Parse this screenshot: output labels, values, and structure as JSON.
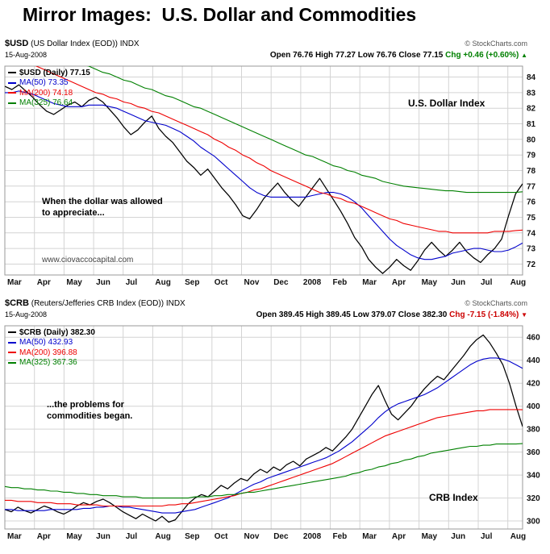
{
  "title": "Mirror Images:  U.S. Dollar and Commodities",
  "usd": {
    "symbol": "$USD",
    "name": "(US Dollar Index (EOD)) INDX",
    "date": "15-Aug-2008",
    "copyright": "© StockCharts.com",
    "ohlc": "Open 76.76 High 77.27 Low 76.76 Close 77.15",
    "chg": "Chg +0.46 (+0.60%)",
    "chg_arrow": "▲",
    "annotation_line1": "When the dollar was allowed",
    "annotation_line2": "to appreciate...",
    "watermark": "www.ciovaccocapital.com",
    "index_label": "U.S. Dollar Index"
  },
  "crb": {
    "symbol": "$CRB",
    "name": "(Reuters/Jefferies CRB Index (EOD)) INDX",
    "date": "15-Aug-2008",
    "copyright": "© StockCharts.com",
    "ohlc": "Open 389.45 High 389.45 Low 379.07 Close 382.30",
    "chg": "Chg -7.15 (-1.84%)",
    "chg_arrow": "▼",
    "annotation_line1": "...the problems for",
    "annotation_line2": "commodities began.",
    "index_label": "CRB Index"
  },
  "chart_data": [
    {
      "type": "line",
      "title": "$USD (US Dollar Index (EOD)) INDX",
      "x_categories": [
        "Mar",
        "Apr",
        "May",
        "Jun",
        "Jul",
        "Aug",
        "Sep",
        "Oct",
        "Nov",
        "Dec",
        "2008",
        "Feb",
        "Mar",
        "Apr",
        "May",
        "Jun",
        "Jul",
        "Aug"
      ],
      "x_span_months": 17.5,
      "y_ticks": [
        72,
        73,
        74,
        75,
        76,
        77,
        78,
        79,
        80,
        81,
        82,
        83,
        84
      ],
      "ylim": [
        71.3,
        84.7
      ],
      "grid": true,
      "legend_position": "top-left",
      "series": [
        {
          "name": "$USD (Daily)",
          "label": "$USD (Daily) 77.15",
          "color": "#000000",
          "bold": true,
          "width": 1.25,
          "values": [
            83.4,
            83.2,
            83.5,
            83.1,
            82.7,
            82.2,
            81.8,
            81.6,
            81.9,
            82.2,
            82.4,
            82.1,
            82.5,
            82.7,
            82.4,
            81.9,
            81.4,
            80.8,
            80.3,
            80.6,
            81.1,
            81.5,
            80.7,
            80.2,
            79.8,
            79.2,
            78.6,
            78.2,
            77.7,
            78.1,
            77.5,
            76.9,
            76.4,
            75.8,
            75.1,
            74.9,
            75.5,
            76.2,
            76.7,
            77.2,
            76.6,
            76.1,
            75.7,
            76.3,
            76.9,
            77.5,
            76.8,
            76.1,
            75.4,
            74.6,
            73.7,
            73.1,
            72.3,
            71.8,
            71.4,
            71.8,
            72.3,
            71.9,
            71.6,
            72.2,
            72.9,
            73.4,
            72.9,
            72.5,
            72.9,
            73.4,
            72.8,
            72.4,
            72.1,
            72.6,
            73.0,
            73.6,
            75.1,
            76.5,
            77.15
          ]
        },
        {
          "name": "MA(50)",
          "label": "MA(50) 73.35",
          "color": "#0000cc",
          "bold": false,
          "width": 1.1,
          "values": [
            83.0,
            83.0,
            83.1,
            83.0,
            82.9,
            82.7,
            82.5,
            82.3,
            82.2,
            82.1,
            82.1,
            82.1,
            82.2,
            82.2,
            82.2,
            82.1,
            82.0,
            81.8,
            81.6,
            81.4,
            81.2,
            81.1,
            81.0,
            80.9,
            80.7,
            80.5,
            80.2,
            79.9,
            79.5,
            79.2,
            78.9,
            78.5,
            78.1,
            77.7,
            77.3,
            76.9,
            76.6,
            76.4,
            76.3,
            76.3,
            76.3,
            76.3,
            76.3,
            76.3,
            76.4,
            76.5,
            76.6,
            76.6,
            76.5,
            76.3,
            76.0,
            75.6,
            75.1,
            74.6,
            74.1,
            73.6,
            73.2,
            72.9,
            72.6,
            72.4,
            72.3,
            72.3,
            72.4,
            72.5,
            72.7,
            72.8,
            72.9,
            73.0,
            73.0,
            72.9,
            72.8,
            72.8,
            72.9,
            73.1,
            73.35
          ]
        },
        {
          "name": "MA(200)",
          "label": "MA(200) 74.18",
          "color": "#ee0000",
          "bold": false,
          "width": 1.1,
          "values": [
            85.6,
            85.4,
            85.2,
            85.0,
            84.8,
            84.6,
            84.4,
            84.2,
            84.0,
            83.8,
            83.6,
            83.4,
            83.2,
            83.0,
            82.9,
            82.7,
            82.6,
            82.4,
            82.3,
            82.1,
            82.0,
            81.8,
            81.7,
            81.5,
            81.3,
            81.1,
            80.9,
            80.7,
            80.5,
            80.3,
            80.0,
            79.8,
            79.5,
            79.3,
            79.0,
            78.8,
            78.5,
            78.3,
            78.0,
            77.8,
            77.6,
            77.4,
            77.2,
            77.0,
            76.8,
            76.6,
            76.5,
            76.3,
            76.2,
            76.0,
            75.9,
            75.7,
            75.5,
            75.3,
            75.1,
            74.9,
            74.8,
            74.6,
            74.5,
            74.4,
            74.3,
            74.2,
            74.1,
            74.1,
            74.0,
            74.0,
            74.0,
            74.0,
            74.0,
            74.0,
            74.1,
            74.1,
            74.1,
            74.15,
            74.18
          ]
        },
        {
          "name": "MA(325)",
          "label": "MA(325) 76.64",
          "color": "#008000",
          "bold": false,
          "width": 1.1,
          "values": [
            87.0,
            86.8,
            86.6,
            86.4,
            86.2,
            86.0,
            85.8,
            85.6,
            85.4,
            85.2,
            85.0,
            84.8,
            84.7,
            84.5,
            84.3,
            84.2,
            84.0,
            83.8,
            83.7,
            83.5,
            83.3,
            83.2,
            83.0,
            82.8,
            82.7,
            82.5,
            82.3,
            82.1,
            82.0,
            81.8,
            81.6,
            81.4,
            81.2,
            81.0,
            80.8,
            80.6,
            80.4,
            80.2,
            80.0,
            79.8,
            79.6,
            79.4,
            79.2,
            79.0,
            78.9,
            78.7,
            78.5,
            78.3,
            78.2,
            78.0,
            77.9,
            77.7,
            77.6,
            77.5,
            77.3,
            77.2,
            77.1,
            77.0,
            76.95,
            76.9,
            76.85,
            76.8,
            76.75,
            76.7,
            76.7,
            76.65,
            76.6,
            76.6,
            76.6,
            76.6,
            76.6,
            76.6,
            76.6,
            76.6,
            76.64
          ]
        }
      ]
    },
    {
      "type": "line",
      "title": "$CRB (Reuters/Jefferies CRB Index (EOD)) INDX",
      "x_categories": [
        "Mar",
        "Apr",
        "May",
        "Jun",
        "Jul",
        "Aug",
        "Sep",
        "Oct",
        "Nov",
        "Dec",
        "2008",
        "Feb",
        "Mar",
        "Apr",
        "May",
        "Jun",
        "Jul",
        "Aug"
      ],
      "x_span_months": 17.5,
      "y_ticks": [
        300,
        320,
        340,
        360,
        380,
        400,
        420,
        440,
        460
      ],
      "ylim": [
        293,
        470
      ],
      "grid": true,
      "legend_position": "top-left",
      "series": [
        {
          "name": "$CRB (Daily)",
          "label": "$CRB (Daily) 382.30",
          "color": "#000000",
          "bold": true,
          "width": 1.25,
          "values": [
            310,
            308,
            312,
            309,
            307,
            310,
            313,
            311,
            308,
            306,
            309,
            313,
            316,
            314,
            317,
            319,
            316,
            312,
            308,
            305,
            302,
            306,
            303,
            300,
            304,
            299,
            301,
            308,
            315,
            320,
            323,
            321,
            326,
            331,
            328,
            333,
            337,
            335,
            341,
            345,
            342,
            347,
            344,
            349,
            352,
            348,
            354,
            357,
            360,
            364,
            361,
            367,
            373,
            380,
            390,
            400,
            410,
            418,
            405,
            393,
            388,
            394,
            400,
            408,
            415,
            421,
            426,
            423,
            430,
            437,
            444,
            452,
            458,
            462,
            455,
            446,
            436,
            420,
            400,
            382.3
          ]
        },
        {
          "name": "MA(50)",
          "label": "MA(50) 432.93",
          "color": "#0000cc",
          "bold": false,
          "width": 1.1,
          "values": [
            310,
            310,
            309,
            309,
            309,
            309,
            309,
            310,
            310,
            310,
            310,
            310,
            311,
            311,
            312,
            312,
            313,
            313,
            312,
            312,
            311,
            310,
            309,
            308,
            307,
            307,
            307,
            308,
            309,
            310,
            312,
            314,
            316,
            318,
            320,
            323,
            326,
            329,
            332,
            334,
            337,
            339,
            341,
            343,
            345,
            347,
            349,
            351,
            353,
            355,
            358,
            361,
            365,
            369,
            374,
            379,
            384,
            390,
            395,
            399,
            402,
            404,
            406,
            408,
            410,
            413,
            416,
            420,
            424,
            428,
            432,
            436,
            439,
            441,
            442,
            442,
            441,
            439,
            436,
            432.93
          ]
        },
        {
          "name": "MA(200)",
          "label": "MA(200) 396.88",
          "color": "#ee0000",
          "bold": false,
          "width": 1.1,
          "values": [
            318,
            318,
            317,
            317,
            317,
            316,
            316,
            316,
            315,
            315,
            315,
            314,
            314,
            314,
            314,
            313,
            313,
            313,
            313,
            313,
            313,
            313,
            313,
            313,
            313,
            314,
            314,
            315,
            315,
            316,
            317,
            318,
            319,
            320,
            321,
            322,
            324,
            325,
            327,
            328,
            330,
            332,
            334,
            336,
            338,
            340,
            342,
            344,
            346,
            348,
            350,
            353,
            356,
            359,
            362,
            365,
            368,
            371,
            374,
            376,
            378,
            380,
            382,
            384,
            386,
            388,
            390,
            391,
            392,
            393,
            394,
            395,
            396,
            396,
            397,
            397,
            397,
            397,
            397,
            396.88
          ]
        },
        {
          "name": "MA(325)",
          "label": "MA(325) 367.36",
          "color": "#008000",
          "bold": false,
          "width": 1.1,
          "values": [
            330,
            329,
            329,
            328,
            328,
            327,
            327,
            326,
            326,
            325,
            325,
            324,
            324,
            323,
            323,
            322,
            322,
            322,
            321,
            321,
            321,
            320,
            320,
            320,
            320,
            320,
            320,
            320,
            320,
            321,
            321,
            321,
            322,
            322,
            323,
            323,
            324,
            325,
            325,
            326,
            327,
            328,
            329,
            330,
            331,
            332,
            333,
            334,
            335,
            336,
            337,
            338,
            339,
            341,
            342,
            344,
            345,
            347,
            348,
            350,
            351,
            353,
            354,
            356,
            357,
            359,
            360,
            361,
            362,
            363,
            364,
            365,
            365,
            366,
            366,
            367,
            367,
            367,
            367,
            367.36
          ]
        }
      ]
    }
  ]
}
